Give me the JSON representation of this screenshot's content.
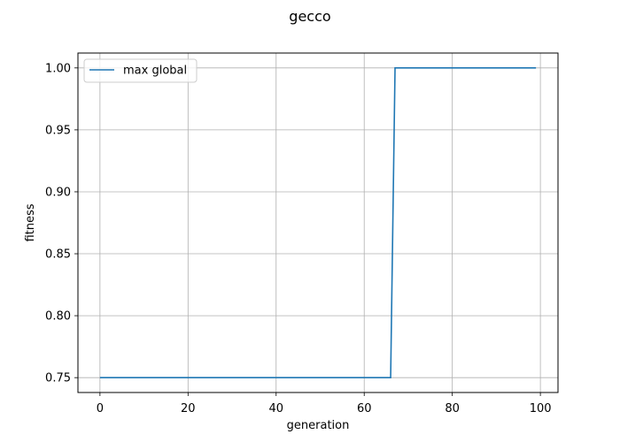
{
  "chart_data": {
    "type": "line",
    "title": "gecco",
    "xlabel": "generation",
    "ylabel": "fitness",
    "xlim": [
      -5,
      104
    ],
    "ylim": [
      0.738,
      1.012
    ],
    "xticks": [
      0,
      20,
      40,
      60,
      80,
      100
    ],
    "xtick_labels": [
      "0",
      "20",
      "40",
      "60",
      "80",
      "100"
    ],
    "yticks": [
      0.75,
      0.8,
      0.85,
      0.9,
      0.95,
      1.0
    ],
    "ytick_labels": [
      "0.75",
      "0.80",
      "0.85",
      "0.90",
      "0.95",
      "1.00"
    ],
    "grid": true,
    "legend_position": "upper-left",
    "series": [
      {
        "name": "max global",
        "color": "#1f77b4",
        "x": [
          0,
          66,
          67,
          99
        ],
        "y": [
          0.75,
          0.75,
          1.0,
          1.0
        ]
      }
    ]
  }
}
